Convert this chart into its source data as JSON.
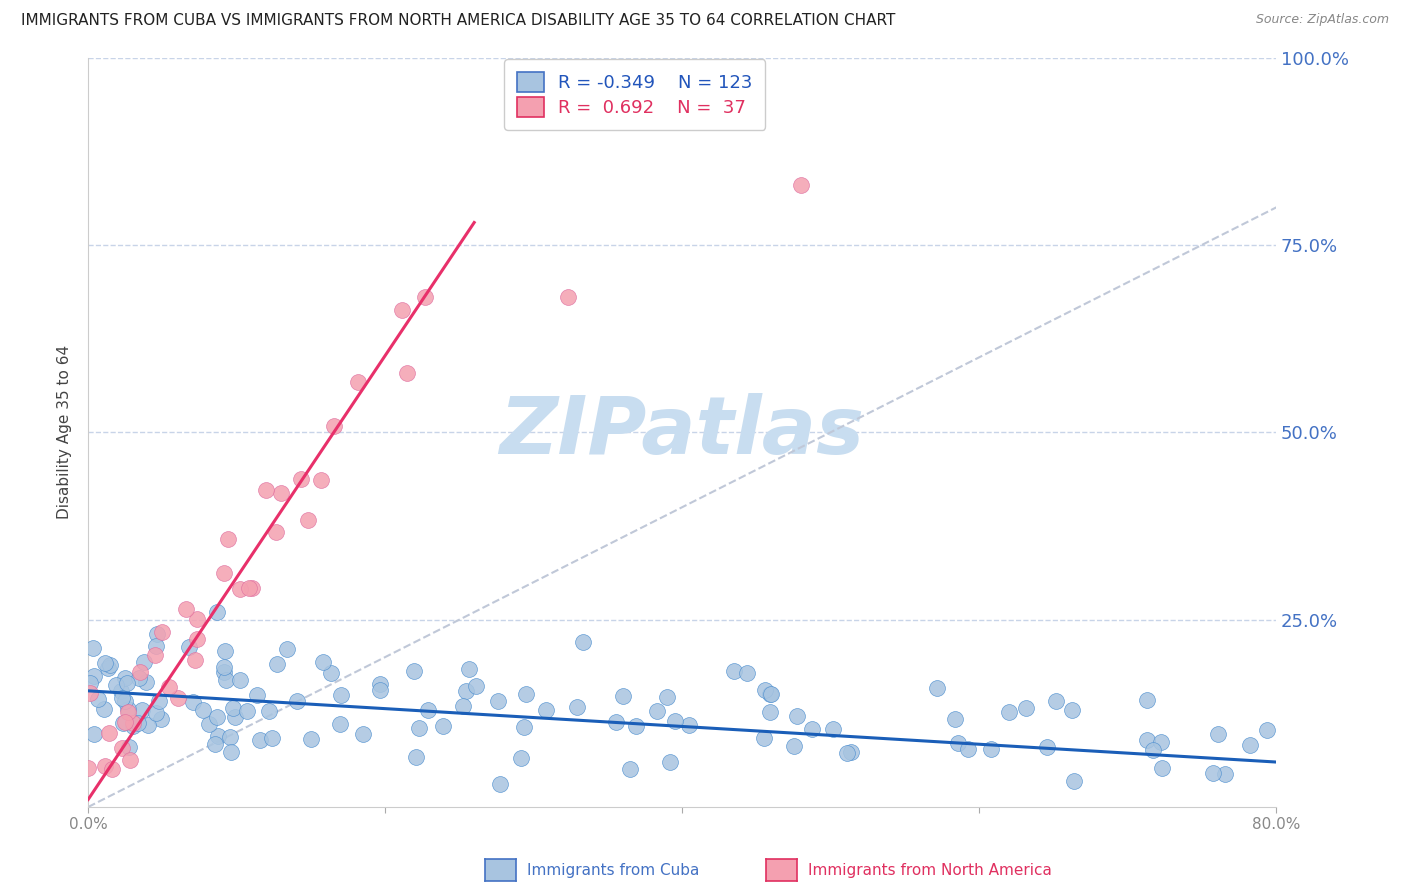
{
  "title": "IMMIGRANTS FROM CUBA VS IMMIGRANTS FROM NORTH AMERICA DISABILITY AGE 35 TO 64 CORRELATION CHART",
  "source": "Source: ZipAtlas.com",
  "ylabel": "Disability Age 35 to 64",
  "xlim": [
    0.0,
    0.8
  ],
  "ylim": [
    0.0,
    1.0
  ],
  "xtick_vals": [
    0.0,
    0.2,
    0.4,
    0.6,
    0.8
  ],
  "xtick_labels": [
    "0.0%",
    "",
    "",
    "",
    "80.0%"
  ],
  "ytick_labels_right": [
    "100.0%",
    "75.0%",
    "50.0%",
    "25.0%"
  ],
  "ytick_vals_right": [
    1.0,
    0.75,
    0.5,
    0.25
  ],
  "series1_color": "#a8c4e0",
  "series2_color": "#f4a0b0",
  "series1_line_color": "#1a5eb8",
  "series2_line_color": "#e8306a",
  "series1_edge_color": "#5090d0",
  "series2_edge_color": "#e070a0",
  "legend_R1": "-0.349",
  "legend_N1": "123",
  "legend_R2": "0.692",
  "legend_N2": "37",
  "legend_label1": "Immigrants from Cuba",
  "legend_label2": "Immigrants from North America",
  "watermark": "ZIPatlas",
  "watermark_color": "#c8ddf0",
  "background_color": "#ffffff",
  "grid_color": "#c8d4e8",
  "title_fontsize": 11,
  "axis_label_fontsize": 11,
  "tick_label_fontsize": 11,
  "ref_line_color": "#c0c8d8",
  "blue_trend_start_x": 0.0,
  "blue_trend_start_y": 0.155,
  "blue_trend_end_x": 0.8,
  "blue_trend_end_y": 0.06,
  "pink_trend_start_x": 0.0,
  "pink_trend_start_y": 0.01,
  "pink_trend_end_x": 0.26,
  "pink_trend_end_y": 0.78
}
